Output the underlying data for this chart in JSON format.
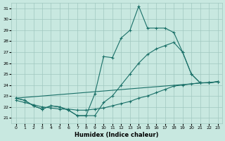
{
  "xlabel": "Humidex (Indice chaleur)",
  "xlim": [
    -0.5,
    23.5
  ],
  "ylim": [
    20.5,
    31.5
  ],
  "yticks": [
    21,
    22,
    23,
    24,
    25,
    26,
    27,
    28,
    29,
    30,
    31
  ],
  "xticks": [
    0,
    1,
    2,
    3,
    4,
    5,
    6,
    7,
    8,
    9,
    10,
    11,
    12,
    13,
    14,
    15,
    16,
    17,
    18,
    19,
    20,
    21,
    22,
    23
  ],
  "bg_color": "#c8e8e0",
  "grid_color": "#a0c8c0",
  "line_color": "#1a7068",
  "line1_x": [
    0,
    1,
    2,
    3,
    4,
    5,
    6,
    7,
    8,
    9,
    10,
    11,
    12,
    13,
    14,
    15,
    16,
    17,
    18,
    19,
    20,
    21,
    22,
    23
  ],
  "line1_y": [
    22.8,
    22.6,
    22.1,
    21.8,
    22.1,
    22.0,
    21.7,
    21.2,
    21.2,
    23.2,
    26.6,
    26.5,
    28.3,
    29.0,
    31.2,
    29.2,
    29.2,
    29.2,
    28.8,
    27.0,
    25.0,
    24.2,
    24.2,
    24.3
  ],
  "line2_x": [
    0,
    1,
    2,
    3,
    4,
    5,
    6,
    7,
    8,
    9,
    10,
    11,
    12,
    13,
    14,
    15,
    16,
    17,
    18,
    19,
    20,
    21,
    22,
    23
  ],
  "line2_y": [
    22.8,
    22.6,
    22.1,
    21.8,
    22.1,
    22.0,
    21.7,
    21.2,
    21.2,
    21.2,
    22.4,
    23.0,
    24.0,
    25.0,
    26.0,
    26.8,
    27.3,
    27.6,
    27.9,
    27.0,
    25.0,
    24.2,
    24.2,
    24.3
  ],
  "line3_x": [
    0,
    1,
    2,
    3,
    4,
    5,
    6,
    7,
    8,
    9,
    10,
    11,
    12,
    13,
    14,
    15,
    16,
    17,
    18,
    19,
    20,
    21,
    22,
    23
  ],
  "line3_y": [
    22.6,
    22.4,
    22.2,
    22.0,
    21.9,
    21.8,
    21.8,
    21.7,
    21.7,
    21.8,
    21.9,
    22.1,
    22.3,
    22.5,
    22.8,
    23.0,
    23.3,
    23.6,
    23.9,
    24.0,
    24.1,
    24.2,
    24.2,
    24.3
  ],
  "line4_x": [
    0,
    23
  ],
  "line4_y": [
    22.8,
    24.3
  ]
}
